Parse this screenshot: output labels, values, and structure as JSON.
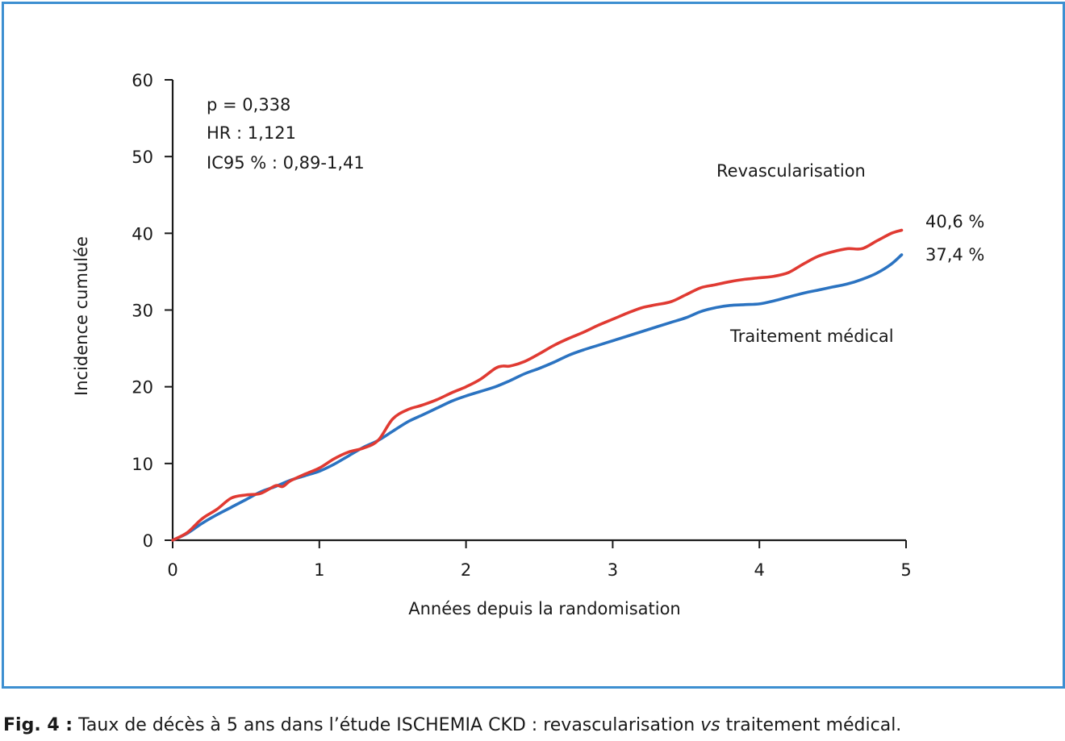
{
  "colors": {
    "frame": "#3d8fd1",
    "revascularisation": "#e03a32",
    "medical": "#2b73c1",
    "text": "#1a1a1a"
  },
  "chart_data": {
    "type": "line",
    "xlabel": "Années depuis la randomisation",
    "ylabel": "Incidence cumulée",
    "xlim": [
      0,
      5
    ],
    "ylim": [
      0,
      60
    ],
    "xticks": [
      "0",
      "1",
      "2",
      "3",
      "4",
      "5"
    ],
    "yticks": [
      "0",
      "10",
      "20",
      "30",
      "40",
      "50",
      "60"
    ],
    "grid": false,
    "stats": [
      "p = 0,338",
      "HR : 1,121",
      "IC95 % : 0,89-1,41"
    ],
    "series": [
      {
        "name": "Revascularisation",
        "end_label": "40,6 %",
        "color": "#e03a32",
        "x": [
          0,
          0.1,
          0.2,
          0.3,
          0.4,
          0.5,
          0.6,
          0.7,
          0.75,
          0.8,
          0.9,
          1.0,
          1.1,
          1.2,
          1.3,
          1.4,
          1.5,
          1.6,
          1.7,
          1.8,
          1.9,
          2.0,
          2.1,
          2.2,
          2.25,
          2.3,
          2.4,
          2.5,
          2.6,
          2.7,
          2.8,
          2.9,
          3.0,
          3.1,
          3.2,
          3.3,
          3.4,
          3.5,
          3.6,
          3.7,
          3.8,
          3.9,
          4.0,
          4.1,
          4.2,
          4.3,
          4.4,
          4.5,
          4.6,
          4.7,
          4.8,
          4.9,
          4.97
        ],
        "y": [
          0,
          1.0,
          2.8,
          4.0,
          5.5,
          5.9,
          6.1,
          7.1,
          7.0,
          7.7,
          8.6,
          9.4,
          10.6,
          11.5,
          12.0,
          13.0,
          15.8,
          17.0,
          17.6,
          18.3,
          19.2,
          20.0,
          21.0,
          22.4,
          22.7,
          22.7,
          23.3,
          24.3,
          25.4,
          26.3,
          27.1,
          28.0,
          28.8,
          29.6,
          30.3,
          30.7,
          31.1,
          32.0,
          32.9,
          33.3,
          33.7,
          34.0,
          34.2,
          34.4,
          34.9,
          36.0,
          37.0,
          37.6,
          38.0,
          38.0,
          39.0,
          40.0,
          40.4
        ]
      },
      {
        "name": "Traitement médical",
        "end_label": "37,4 %",
        "color": "#2b73c1",
        "x": [
          0,
          0.1,
          0.2,
          0.3,
          0.4,
          0.5,
          0.6,
          0.7,
          0.8,
          0.9,
          1.0,
          1.1,
          1.2,
          1.3,
          1.4,
          1.5,
          1.6,
          1.7,
          1.8,
          1.9,
          2.0,
          2.1,
          2.2,
          2.3,
          2.4,
          2.5,
          2.6,
          2.7,
          2.8,
          2.9,
          3.0,
          3.1,
          3.2,
          3.3,
          3.4,
          3.5,
          3.6,
          3.7,
          3.8,
          3.9,
          4.0,
          4.1,
          4.2,
          4.3,
          4.4,
          4.5,
          4.6,
          4.7,
          4.8,
          4.9,
          4.97
        ],
        "y": [
          0,
          0.9,
          2.2,
          3.3,
          4.3,
          5.3,
          6.3,
          7.0,
          7.8,
          8.4,
          9.0,
          9.9,
          11.0,
          12.1,
          13.0,
          14.2,
          15.4,
          16.3,
          17.2,
          18.1,
          18.8,
          19.4,
          20.0,
          20.8,
          21.7,
          22.4,
          23.2,
          24.1,
          24.8,
          25.4,
          26.0,
          26.6,
          27.2,
          27.8,
          28.4,
          29.0,
          29.8,
          30.3,
          30.6,
          30.7,
          30.8,
          31.2,
          31.7,
          32.2,
          32.6,
          33.0,
          33.4,
          34.0,
          34.8,
          36.0,
          37.2
        ]
      }
    ]
  },
  "caption": {
    "label": "Fig. 4 :",
    "text_before": " Taux de décès à 5 ans dans l’étude ISCHEMIA CKD : revascularisation ",
    "text_italic": "vs",
    "text_after": " traitement médical."
  }
}
